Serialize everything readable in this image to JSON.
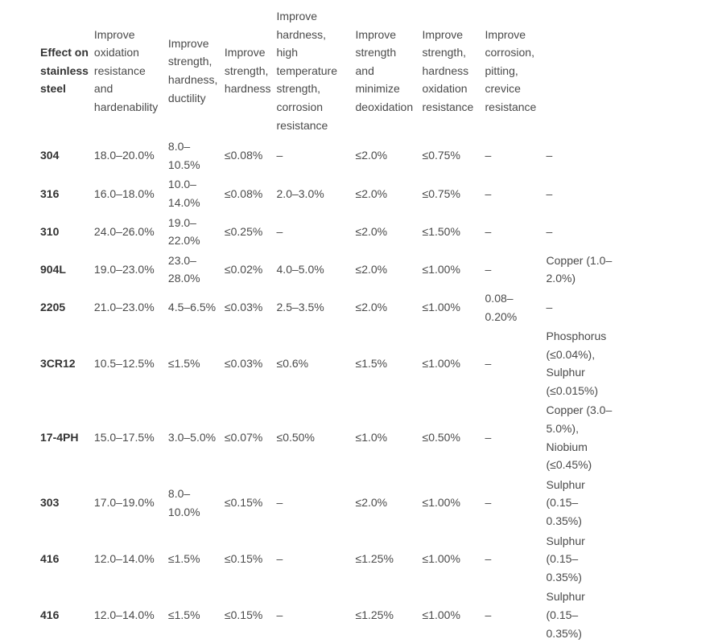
{
  "table": {
    "corner_label": "Effect on stainless steel",
    "headers": [
      "Improve oxidation resistance and hardenability",
      "Improve strength, hardness, ductility",
      "Improve strength, hardness",
      "Improve hardness, high temperature strength, corrosion resistance",
      "Improve strength and minimize deoxidation",
      "Improve strength, hardness oxidation resistance",
      "Improve corrosion, pitting, crevice resistance",
      ""
    ],
    "rows": [
      {
        "grade": "304",
        "cells": [
          "18.0–20.0%",
          "8.0–10.5%",
          "≤0.08%",
          "–",
          "≤2.0%",
          "≤0.75%",
          "–",
          "–"
        ]
      },
      {
        "grade": "316",
        "cells": [
          "16.0–18.0%",
          "10.0–14.0%",
          "≤0.08%",
          "2.0–3.0%",
          "≤2.0%",
          "≤0.75%",
          "–",
          "–"
        ]
      },
      {
        "grade": "310",
        "cells": [
          "24.0–26.0%",
          "19.0–22.0%",
          "≤0.25%",
          "–",
          "≤2.0%",
          "≤1.50%",
          "–",
          "–"
        ]
      },
      {
        "grade": "904L",
        "cells": [
          "19.0–23.0%",
          "23.0–28.0%",
          "≤0.02%",
          "4.0–5.0%",
          "≤2.0%",
          "≤1.00%",
          "–",
          "Copper (1.0–2.0%)"
        ]
      },
      {
        "grade": "2205",
        "cells": [
          "21.0–23.0%",
          "4.5–6.5%",
          "≤0.03%",
          "2.5–3.5%",
          "≤2.0%",
          "≤1.00%",
          "0.08–0.20%",
          "–"
        ]
      },
      {
        "grade": "3CR12",
        "cells": [
          "10.5–12.5%",
          "≤1.5%",
          "≤0.03%",
          "≤0.6%",
          "≤1.5%",
          "≤1.00%",
          "–",
          "Phosphorus (≤0.04%), Sulphur (≤0.015%)"
        ]
      },
      {
        "grade": "17-4PH",
        "cells": [
          "15.0–17.5%",
          "3.0–5.0%",
          "≤0.07%",
          "≤0.50%",
          "≤1.0%",
          "≤0.50%",
          "–",
          "Copper (3.0–5.0%), Niobium (≤0.45%)"
        ]
      },
      {
        "grade": "303",
        "cells": [
          "17.0–19.0%",
          "8.0–10.0%",
          "≤0.15%",
          "–",
          "≤2.0%",
          "≤1.00%",
          "–",
          "Sulphur (0.15–0.35%)"
        ]
      },
      {
        "grade": "416",
        "cells": [
          "12.0–14.0%",
          "≤1.5%",
          "≤0.15%",
          "–",
          "≤1.25%",
          "≤1.00%",
          "–",
          "Sulphur (0.15–0.35%)"
        ]
      },
      {
        "grade": "416",
        "cells": [
          "12.0–14.0%",
          "≤1.5%",
          "≤0.15%",
          "–",
          "≤1.25%",
          "≤1.00%",
          "–",
          "Sulphur (0.15–0.35%)"
        ]
      }
    ]
  }
}
